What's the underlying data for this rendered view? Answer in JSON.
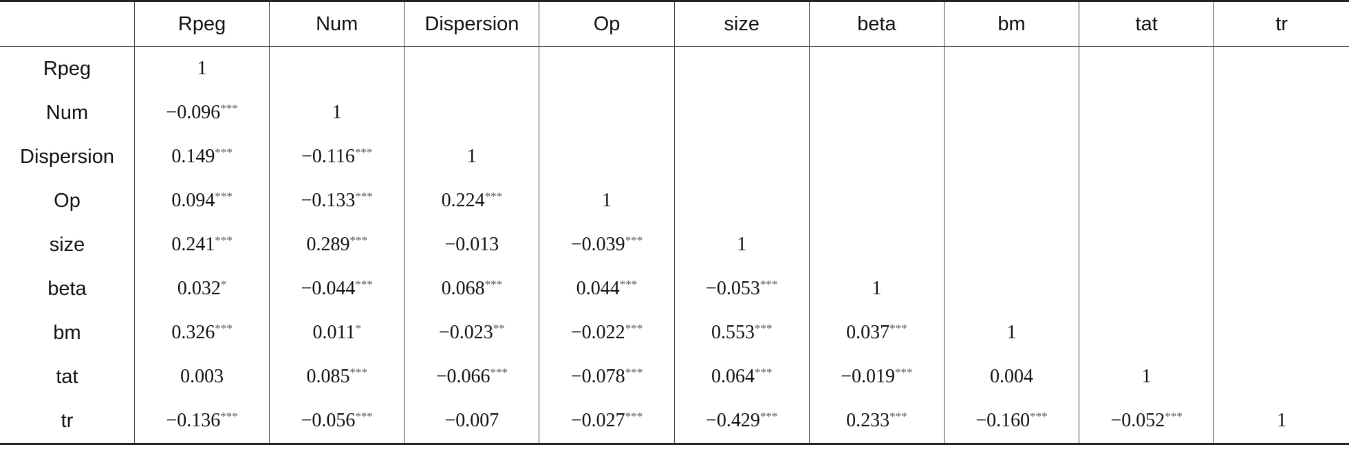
{
  "table": {
    "header": [
      "Rpeg",
      "Num",
      "Dispersion",
      "Op",
      "size",
      "beta",
      "bm",
      "tat",
      "tr"
    ],
    "rows": [
      {
        "label": "Rpeg",
        "cells": [
          {
            "text": "1"
          }
        ]
      },
      {
        "label": "Num",
        "cells": [
          {
            "text": "−0.096",
            "sig": "***"
          },
          {
            "text": "1"
          }
        ]
      },
      {
        "label": "Dispersion",
        "cells": [
          {
            "text": "0.149",
            "sig": "***"
          },
          {
            "text": "−0.116",
            "sig": "***"
          },
          {
            "text": "1"
          }
        ]
      },
      {
        "label": "Op",
        "cells": [
          {
            "text": "0.094",
            "sig": "***"
          },
          {
            "text": "−0.133",
            "sig": "***"
          },
          {
            "text": "0.224",
            "sig": "***"
          },
          {
            "text": "1"
          }
        ]
      },
      {
        "label": "size",
        "cells": [
          {
            "text": "0.241",
            "sig": "***"
          },
          {
            "text": "0.289",
            "sig": "***"
          },
          {
            "text": "−0.013"
          },
          {
            "text": "−0.039",
            "sig": "***"
          },
          {
            "text": "1"
          }
        ]
      },
      {
        "label": "beta",
        "cells": [
          {
            "text": "0.032",
            "sig": "*"
          },
          {
            "text": "−0.044",
            "sig": "***"
          },
          {
            "text": "0.068",
            "sig": "***"
          },
          {
            "text": "0.044",
            "sig": "***"
          },
          {
            "text": "−0.053",
            "sig": "***"
          },
          {
            "text": "1"
          }
        ]
      },
      {
        "label": "bm",
        "cells": [
          {
            "text": "0.326",
            "sig": "***"
          },
          {
            "text": "0.011",
            "sig": "*"
          },
          {
            "text": "−0.023",
            "sig": "**"
          },
          {
            "text": "−0.022",
            "sig": "***"
          },
          {
            "text": "0.553",
            "sig": "***"
          },
          {
            "text": "0.037",
            "sig": "***"
          },
          {
            "text": "1"
          }
        ]
      },
      {
        "label": "tat",
        "cells": [
          {
            "text": "0.003"
          },
          {
            "text": "0.085",
            "sig": "***"
          },
          {
            "text": "−0.066",
            "sig": "***"
          },
          {
            "text": "−0.078",
            "sig": "***"
          },
          {
            "text": "0.064",
            "sig": "***"
          },
          {
            "text": "−0.019",
            "sig": "***"
          },
          {
            "text": "0.004"
          },
          {
            "text": "1"
          }
        ]
      },
      {
        "label": "tr",
        "cells": [
          {
            "text": "−0.136",
            "sig": "***"
          },
          {
            "text": "−0.056",
            "sig": "***"
          },
          {
            "text": "−0.007"
          },
          {
            "text": "−0.027",
            "sig": "***"
          },
          {
            "text": "−0.429",
            "sig": "***"
          },
          {
            "text": "0.233",
            "sig": "***"
          },
          {
            "text": "−0.160",
            "sig": "***"
          },
          {
            "text": "−0.052",
            "sig": "***"
          },
          {
            "text": "1"
          }
        ]
      }
    ]
  }
}
